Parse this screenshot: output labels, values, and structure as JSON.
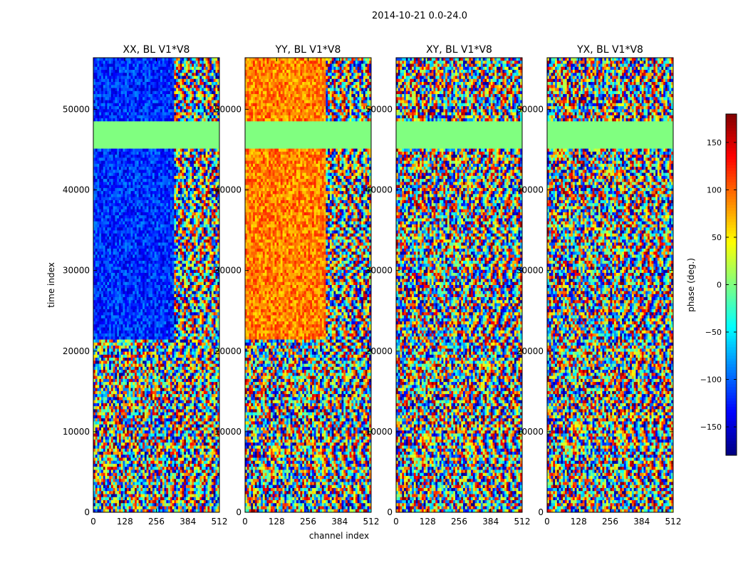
{
  "figure": {
    "suptitle": "2014-10-21 0.0-24.0"
  },
  "chart_data": {
    "type": "heatmap",
    "title": "2014-10-21 0.0-24.0",
    "xlabel": "channel index",
    "ylabel": "time index",
    "xlim": [
      0,
      512
    ],
    "ylim": [
      0,
      56400
    ],
    "xticks": [
      0,
      128,
      256,
      384,
      512
    ],
    "yticks": [
      0,
      10000,
      20000,
      30000,
      40000,
      50000
    ],
    "colormap": "jet",
    "colorbar": {
      "label": "phase (deg.)",
      "range": [
        -180,
        180
      ],
      "ticks": [
        -150,
        -100,
        -50,
        0,
        50,
        100,
        150
      ],
      "tick_labels": [
        "−150",
        "−100",
        "−50",
        "0",
        "50",
        "100",
        "150"
      ]
    },
    "panels": [
      {
        "title": "XX, BL V1*V8"
      },
      {
        "title": "YY, BL V1*V8"
      },
      {
        "title": "XY, BL V1*V8"
      },
      {
        "title": "YX, BL V1*V8"
      }
    ],
    "flagged_range": [
      45200,
      48500
    ],
    "flagged_value_deg": 0,
    "structure": {
      "coherent_channel_cutoff": 330,
      "coherent_time_range": [
        21600,
        56400
      ],
      "panel_mean_phase_deg": [
        -120,
        90,
        null,
        null
      ]
    }
  }
}
